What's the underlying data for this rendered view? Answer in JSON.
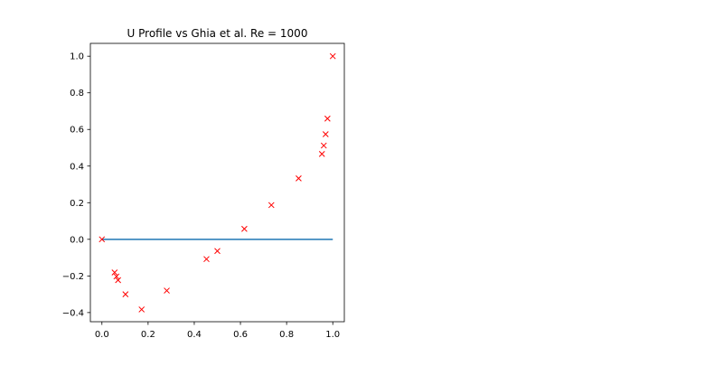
{
  "chart_data": {
    "type": "scatter",
    "title": "U Profile vs Ghia et al. Re = 1000",
    "xlabel": "",
    "ylabel": "",
    "xlim": [
      -0.05,
      1.05
    ],
    "ylim": [
      -0.45,
      1.07
    ],
    "xticks": [
      0.0,
      0.2,
      0.4,
      0.6,
      0.8,
      1.0
    ],
    "xtick_labels": [
      "0.0",
      "0.2",
      "0.4",
      "0.6",
      "0.8",
      "1.0"
    ],
    "yticks": [
      -0.4,
      -0.2,
      0.0,
      0.2,
      0.4,
      0.6,
      0.8,
      1.0
    ],
    "ytick_labels": [
      "−0.4",
      "−0.2",
      "0.0",
      "0.2",
      "0.4",
      "0.6",
      "0.8",
      "1.0"
    ],
    "grid": false,
    "series": [
      {
        "kind": "line",
        "color": "#1f77b4",
        "x": [
          0.0,
          0.2,
          0.4,
          0.6,
          0.8,
          1.0
        ],
        "y": [
          0.0,
          0.0,
          0.0,
          0.0,
          0.0,
          0.0
        ]
      },
      {
        "kind": "scatter",
        "marker": "x",
        "color": "#ff0000",
        "x": [
          0.0,
          0.055,
          0.063,
          0.07,
          0.102,
          0.172,
          0.281,
          0.453,
          0.5,
          0.617,
          0.734,
          0.852,
          0.953,
          0.961,
          0.969,
          0.977,
          1.0
        ],
        "y": [
          0.0,
          -0.181,
          -0.203,
          -0.223,
          -0.3,
          -0.383,
          -0.28,
          -0.108,
          -0.064,
          0.057,
          0.187,
          0.333,
          0.466,
          0.512,
          0.574,
          0.659,
          1.0
        ]
      }
    ]
  }
}
